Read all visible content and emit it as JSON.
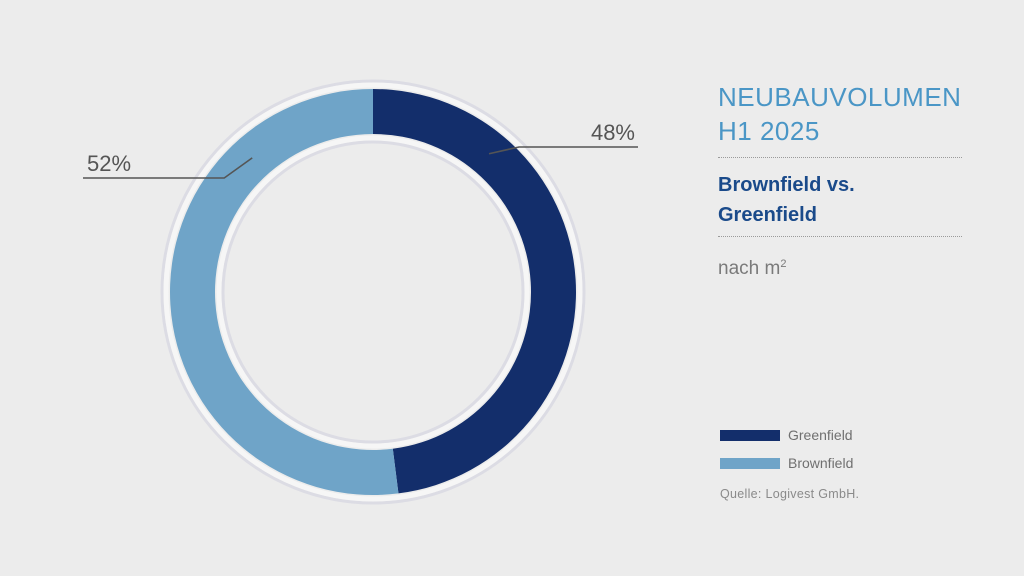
{
  "title": [
    "NEUBAUVOLUMEN",
    "H1 2025"
  ],
  "subtitle": [
    "Brownfield vs.",
    "Greenfield"
  ],
  "unit_text": "nach m",
  "unit_sup": "2",
  "source": "Quelle: Logivest GmbH.",
  "colors": {
    "background": "#ececec",
    "greenfield": "#132e6b",
    "brownfield": "#6fa4c8",
    "title": "#4a96c6",
    "subtitle": "#1a4a8a"
  },
  "chart_data": {
    "type": "pie",
    "style": "donut",
    "slices": [
      {
        "name": "Greenfield",
        "value": 48,
        "label": "48%",
        "color": "#132e6b"
      },
      {
        "name": "Brownfield",
        "value": 52,
        "label": "52%",
        "color": "#6fa4c8"
      }
    ],
    "legend": [
      {
        "label": "Greenfield",
        "color": "#132e6b"
      },
      {
        "label": "Brownfield",
        "color": "#6fa4c8"
      }
    ],
    "legend_position": "right"
  }
}
